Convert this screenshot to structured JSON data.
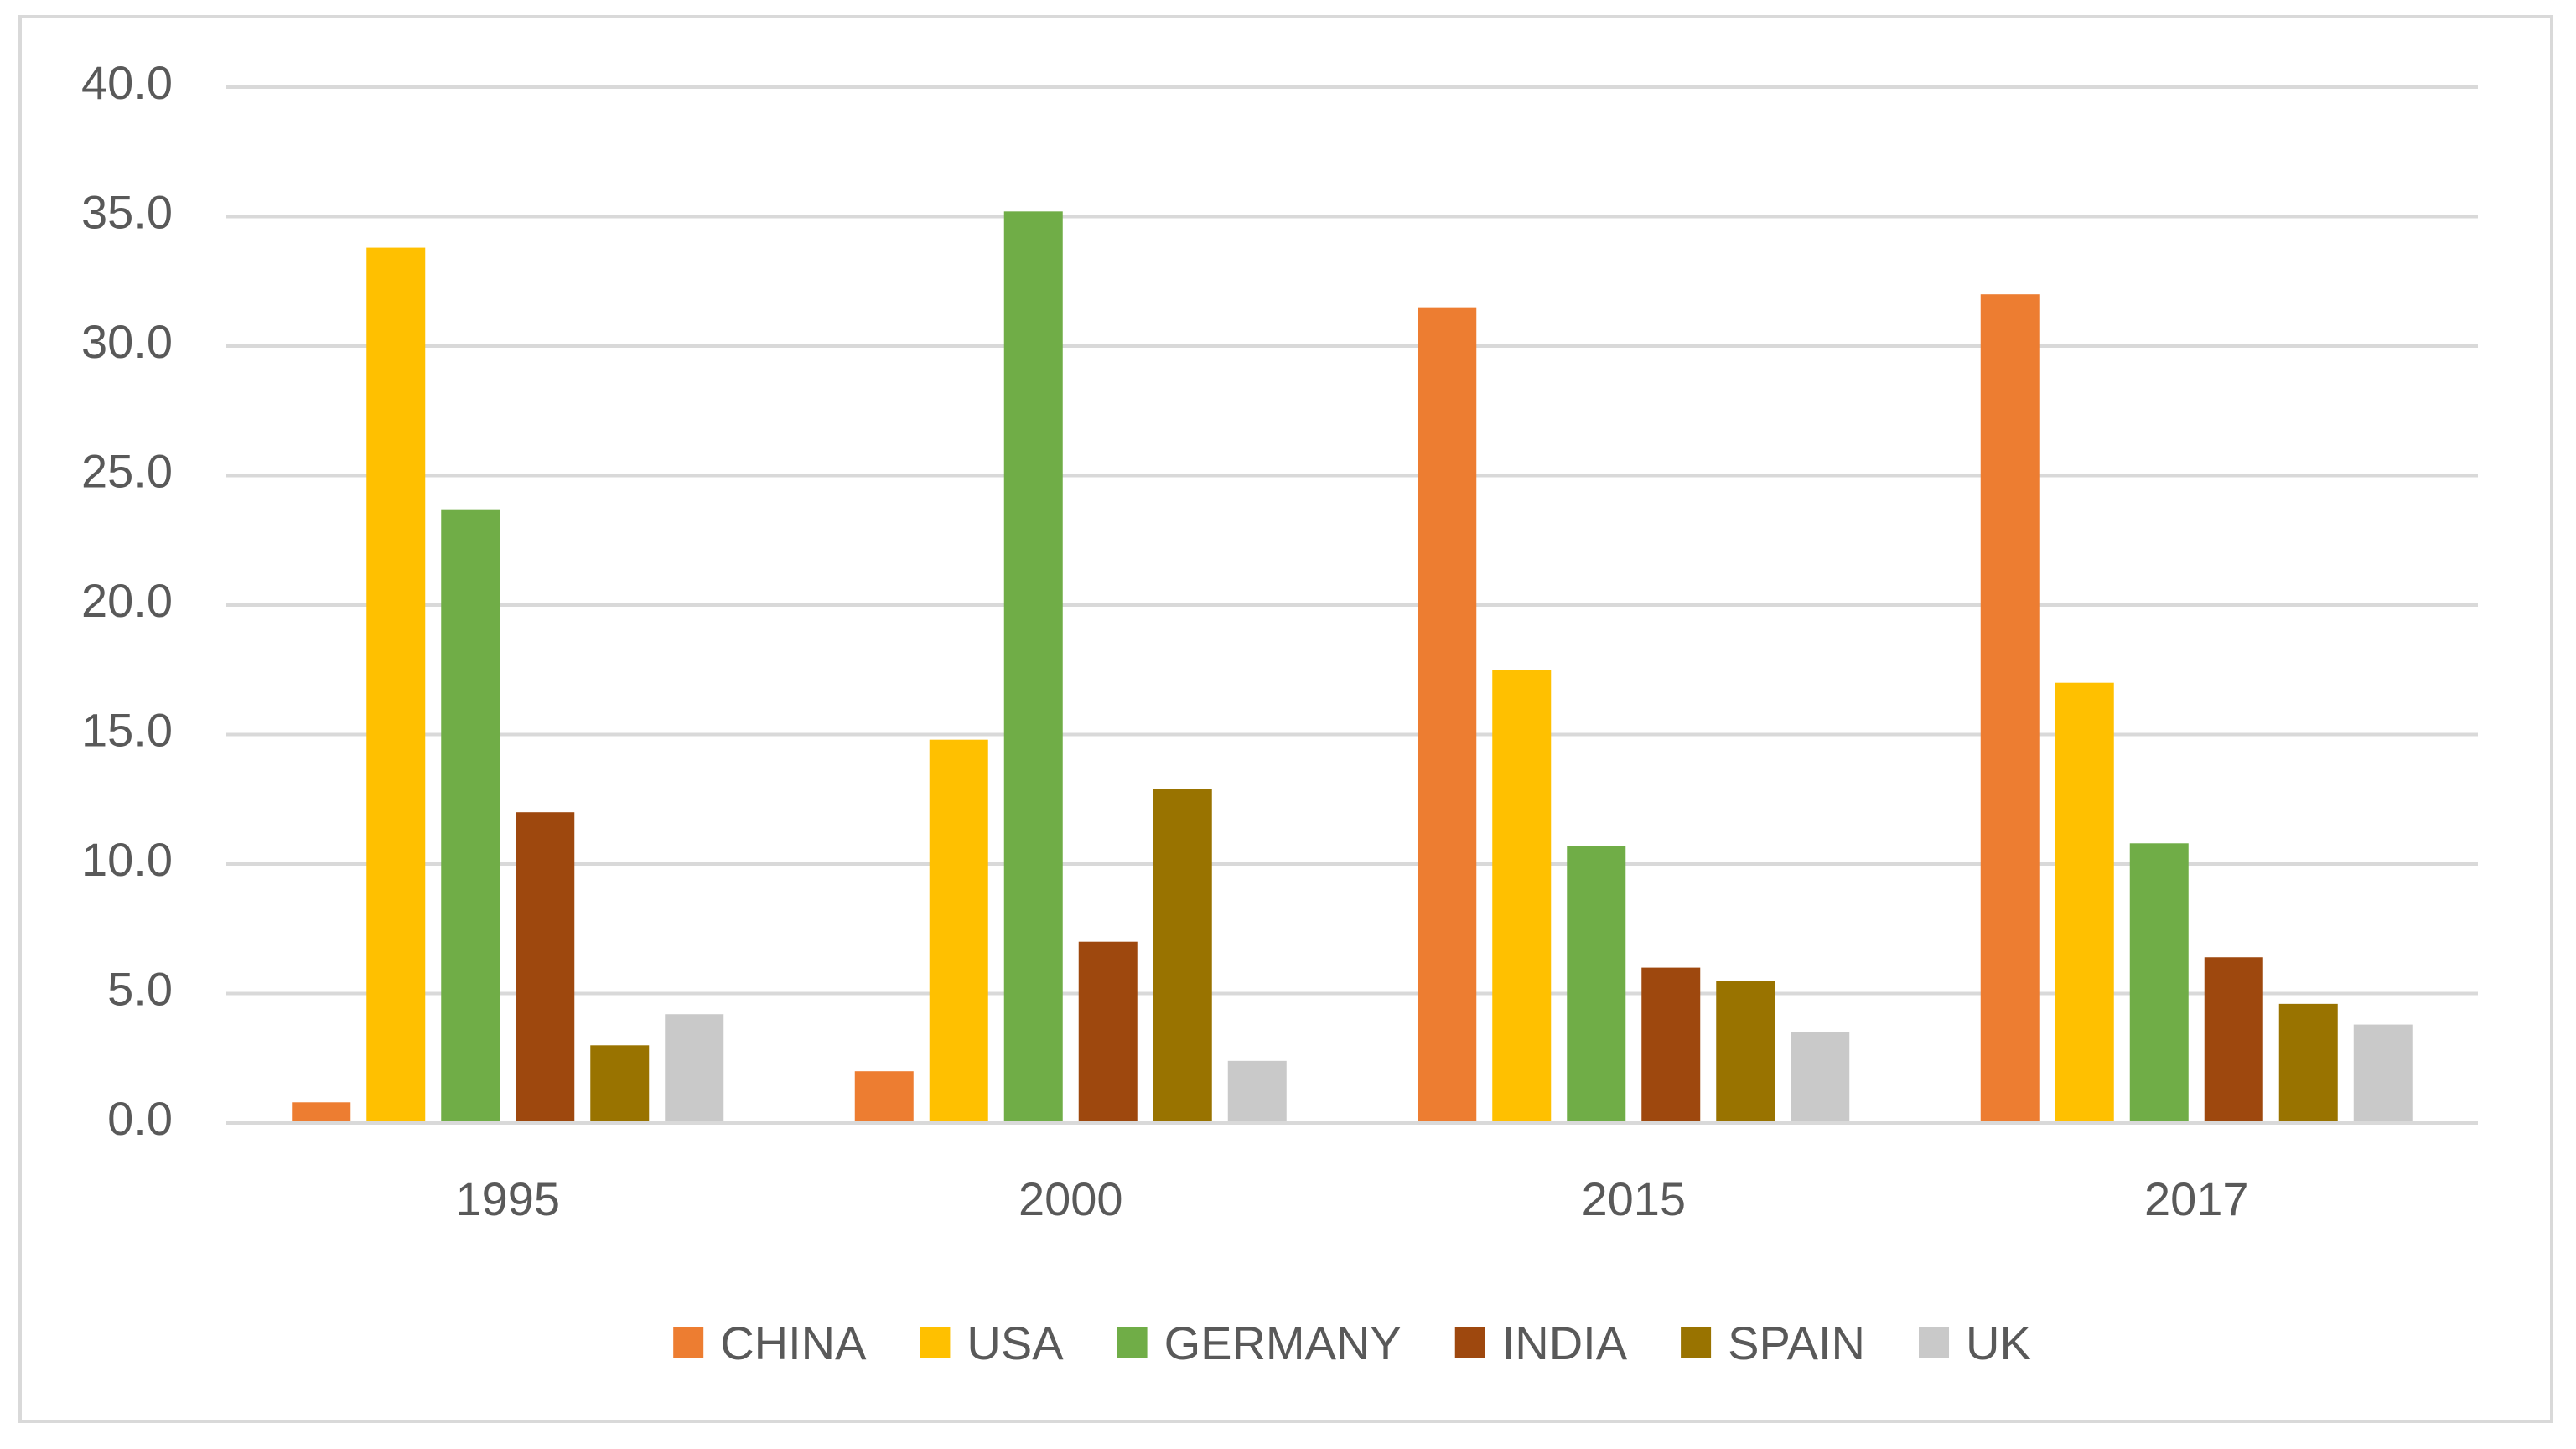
{
  "chart_data": {
    "type": "bar",
    "title": "",
    "xlabel": "",
    "ylabel": "",
    "categories": [
      "1995",
      "2000",
      "2015",
      "2017"
    ],
    "ylim": [
      0,
      40
    ],
    "ytick_step": 5,
    "ytick_labels": [
      "0.0",
      "5.0",
      "10.0",
      "15.0",
      "20.0",
      "25.0",
      "30.0",
      "35.0",
      "40.0"
    ],
    "grid": true,
    "legend_position": "bottom",
    "series": [
      {
        "name": "CHINA",
        "color": "#ED7D31",
        "values": [
          0.8,
          2.0,
          31.5,
          32.0
        ]
      },
      {
        "name": "USA",
        "color": "#FFC000",
        "values": [
          33.8,
          14.8,
          17.5,
          17.0
        ]
      },
      {
        "name": "GERMANY",
        "color": "#70AD47",
        "values": [
          23.7,
          35.2,
          10.7,
          10.8
        ]
      },
      {
        "name": "INDIA",
        "color": "#9E480E",
        "values": [
          12.0,
          7.0,
          6.0,
          6.4
        ]
      },
      {
        "name": "SPAIN",
        "color": "#997300",
        "values": [
          3.0,
          12.9,
          5.5,
          4.6
        ]
      },
      {
        "name": "UK",
        "color": "#C9C9C9",
        "values": [
          4.2,
          2.4,
          3.5,
          3.8
        ]
      }
    ],
    "colors": {
      "gridline": "#D9D9D9",
      "axis_line": "#D9D9D9",
      "text": "#595959",
      "frame": "#D9D9D9"
    }
  }
}
